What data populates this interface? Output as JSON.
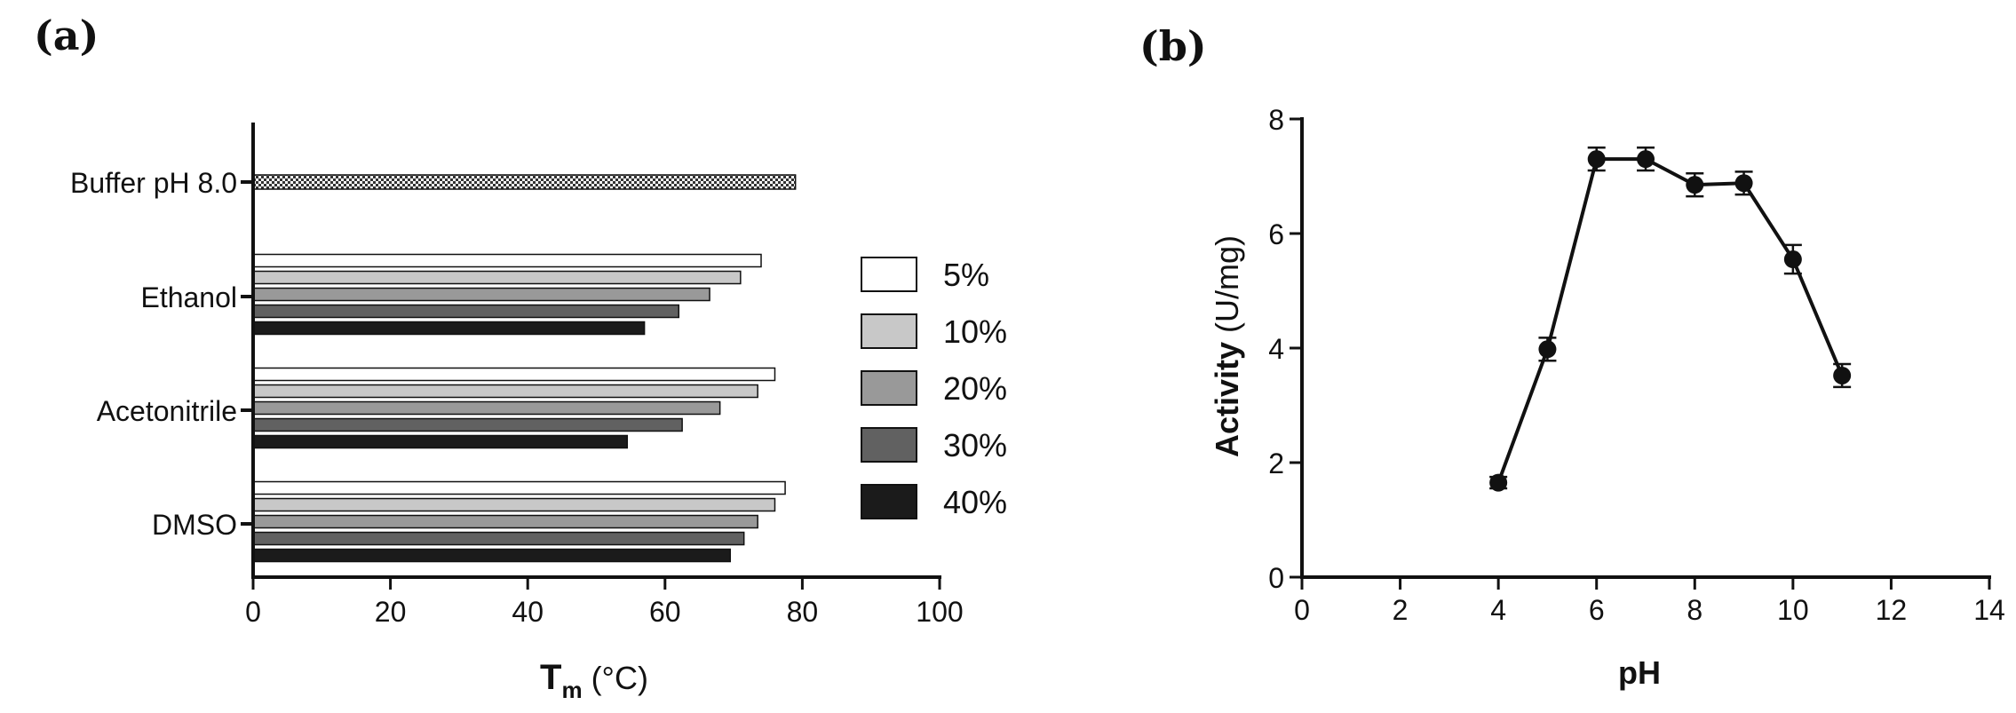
{
  "chart_data": [
    {
      "panel": "(a)",
      "type": "bar",
      "orientation": "horizontal",
      "categories": [
        "Buffer pH 8.0",
        "Ethanol",
        "Acetonitrile",
        "DMSO"
      ],
      "buffer_value": 79,
      "series": [
        {
          "name": "5%",
          "color": "#ffffff",
          "values": [
            null,
            74,
            76,
            77.5
          ]
        },
        {
          "name": "10%",
          "color": "#c8c8c8",
          "values": [
            null,
            71,
            73.5,
            76
          ]
        },
        {
          "name": "20%",
          "color": "#999999",
          "values": [
            null,
            66.5,
            68,
            73.5
          ]
        },
        {
          "name": "30%",
          "color": "#616161",
          "values": [
            null,
            62,
            62.5,
            71.5
          ]
        },
        {
          "name": "40%",
          "color": "#1b1b1b",
          "values": [
            null,
            57,
            54.5,
            69.5
          ]
        }
      ],
      "xlabel_main": "T",
      "xlabel_sub": "m",
      "xlabel_unit": " (°C)",
      "xlim": [
        0,
        100
      ],
      "xticks": [
        "0",
        "20",
        "40",
        "60",
        "80",
        "100"
      ],
      "legend_position": "right"
    },
    {
      "panel": "(b)",
      "type": "line",
      "x": [
        4,
        5,
        6,
        7,
        8,
        9,
        10,
        11
      ],
      "y": [
        1.65,
        3.98,
        7.3,
        7.3,
        6.85,
        6.88,
        5.55,
        3.52
      ],
      "yerr": [
        0.1,
        0.2,
        0.2,
        0.2,
        0.2,
        0.2,
        0.25,
        0.2
      ],
      "xlabel": "pH",
      "ylabel_main": "Activity",
      "ylabel_unit": " (U/mg)",
      "xlim": [
        0,
        14
      ],
      "ylim": [
        0,
        8
      ],
      "xticks": [
        "0",
        "2",
        "4",
        "6",
        "8",
        "10",
        "12",
        "14"
      ],
      "yticks": [
        "0",
        "2",
        "4",
        "6",
        "8"
      ]
    }
  ]
}
